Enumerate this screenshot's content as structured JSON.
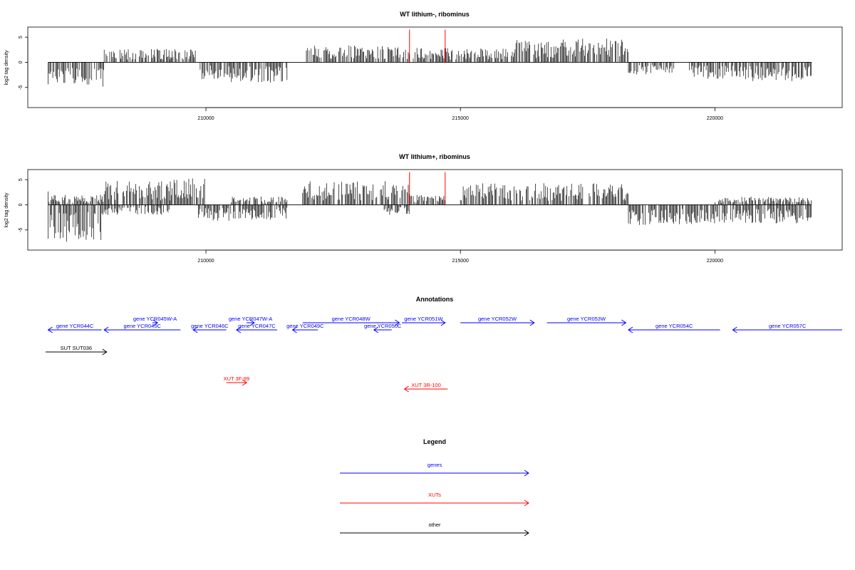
{
  "chart_data": [
    {
      "type": "bar",
      "title": "WT lithium-, ribominus",
      "ylabel": "log2 tag density",
      "xlim": [
        206500,
        222500
      ],
      "ylim": [
        -9,
        7
      ],
      "xticks": [
        210000,
        215000,
        220000
      ],
      "xtick_labels": [
        "210000",
        "215000",
        "220000"
      ],
      "yticks": [
        -5,
        0,
        5
      ],
      "ytick_labels": [
        "-5",
        "0",
        "5"
      ],
      "segments": [
        {
          "start": 206900,
          "end": 208000,
          "sign": -1,
          "level": 3.8
        },
        {
          "start": 208000,
          "end": 209300,
          "sign": 1,
          "level": 2.0
        },
        {
          "start": 209300,
          "end": 209800,
          "sign": 1,
          "level": 2.0
        },
        {
          "start": 209850,
          "end": 210500,
          "sign": -1,
          "level": 2.5
        },
        {
          "start": 210500,
          "end": 211600,
          "sign": -1,
          "level": 3.0
        },
        {
          "start": 211900,
          "end": 214000,
          "sign": 1,
          "level": 2.5
        },
        {
          "start": 214000,
          "end": 215000,
          "sign": 1,
          "level": 2.2
        },
        {
          "start": 215000,
          "end": 216000,
          "sign": 1,
          "level": 2.0
        },
        {
          "start": 216000,
          "end": 218300,
          "sign": 1,
          "level": 3.5
        },
        {
          "start": 218300,
          "end": 219200,
          "sign": -1,
          "level": 1.8
        },
        {
          "start": 219500,
          "end": 220400,
          "sign": -1,
          "level": 2.5
        },
        {
          "start": 220400,
          "end": 221900,
          "sign": -1,
          "level": 2.8
        }
      ],
      "markers": [
        214000,
        214700
      ],
      "marker_color": "#ff0000"
    },
    {
      "type": "bar",
      "title": "WT lithium+, ribominus",
      "ylabel": "log2 tag density",
      "xlim": [
        206500,
        222500
      ],
      "ylim": [
        -9,
        7
      ],
      "xticks": [
        210000,
        215000,
        220000
      ],
      "xtick_labels": [
        "210000",
        "215000",
        "220000"
      ],
      "yticks": [
        -5,
        0,
        5
      ],
      "ytick_labels": [
        "-5",
        "0",
        "5"
      ],
      "segments": [
        {
          "start": 206900,
          "end": 207000,
          "sign": 1,
          "level": 2.0
        },
        {
          "start": 206900,
          "end": 208000,
          "sign": -1,
          "level": 5.5
        },
        {
          "start": 207000,
          "end": 208000,
          "sign": 1,
          "level": 1.5
        },
        {
          "start": 208000,
          "end": 209300,
          "sign": 1,
          "level": 3.5
        },
        {
          "start": 208000,
          "end": 209300,
          "sign": -1,
          "level": 1.5
        },
        {
          "start": 209300,
          "end": 210000,
          "sign": 1,
          "level": 4.0
        },
        {
          "start": 209850,
          "end": 210500,
          "sign": -1,
          "level": 2.5
        },
        {
          "start": 210500,
          "end": 211600,
          "sign": -1,
          "level": 2.2
        },
        {
          "start": 210500,
          "end": 211600,
          "sign": 1,
          "level": 1.2
        },
        {
          "start": 211900,
          "end": 214000,
          "sign": 1,
          "level": 3.5
        },
        {
          "start": 213500,
          "end": 214000,
          "sign": -1,
          "level": 1.5
        },
        {
          "start": 214000,
          "end": 214700,
          "sign": 1,
          "level": 1.5
        },
        {
          "start": 215000,
          "end": 218300,
          "sign": 1,
          "level": 3.2
        },
        {
          "start": 218300,
          "end": 220000,
          "sign": -1,
          "level": 3.0
        },
        {
          "start": 220000,
          "end": 221900,
          "sign": -1,
          "level": 2.8
        },
        {
          "start": 220000,
          "end": 221900,
          "sign": 1,
          "level": 1.2
        }
      ],
      "markers": [
        214000,
        214700
      ],
      "marker_color": "#ff0000"
    }
  ],
  "annotations": {
    "title": "Annotations",
    "xlim": [
      206500,
      222500
    ],
    "features": [
      {
        "label": "gene YCR044C",
        "start": 206900,
        "end": 207950,
        "dir": "left",
        "color": "#0000ff",
        "row": 0
      },
      {
        "label": "gene YCR045W-A",
        "start": 208950,
        "end": 209050,
        "dir": "right",
        "color": "#0000ff",
        "row": -1
      },
      {
        "label": "gene YCR045C",
        "start": 208000,
        "end": 209500,
        "dir": "left",
        "color": "#0000ff",
        "row": 0
      },
      {
        "label": "gene YCR046C",
        "start": 209750,
        "end": 210400,
        "dir": "left",
        "color": "#0000ff",
        "row": 0
      },
      {
        "label": "gene YCR047W-A",
        "start": 210800,
        "end": 210950,
        "dir": "right",
        "color": "#0000ff",
        "row": -1
      },
      {
        "label": "gene YCR047C",
        "start": 210600,
        "end": 211400,
        "dir": "left",
        "color": "#0000ff",
        "row": 0
      },
      {
        "label": "gene YCR048W",
        "start": 211900,
        "end": 213800,
        "dir": "right",
        "color": "#0000ff",
        "row": -1
      },
      {
        "label": "gene YCR049C",
        "start": 211700,
        "end": 212200,
        "dir": "left",
        "color": "#0000ff",
        "row": 0
      },
      {
        "label": "gene YCR050C",
        "start": 213300,
        "end": 213650,
        "dir": "left",
        "color": "#0000ff",
        "row": 0
      },
      {
        "label": "gene YCR051W",
        "start": 213850,
        "end": 214700,
        "dir": "right",
        "color": "#0000ff",
        "row": -1
      },
      {
        "label": "gene YCR052W",
        "start": 215000,
        "end": 216450,
        "dir": "right",
        "color": "#0000ff",
        "row": -1
      },
      {
        "label": "gene YCR053W",
        "start": 216700,
        "end": 218250,
        "dir": "right",
        "color": "#0000ff",
        "row": -1
      },
      {
        "label": "gene YCR054C",
        "start": 218300,
        "end": 220100,
        "dir": "left",
        "color": "#0000ff",
        "row": 0
      },
      {
        "label": "gene YCR057C",
        "start": 220350,
        "end": 222500,
        "dir": "left",
        "color": "#0000ff",
        "row": 0
      },
      {
        "label": "SUT SUT036",
        "start": 206850,
        "end": 208050,
        "dir": "right",
        "color": "#000000",
        "row": 2
      },
      {
        "label": "XUT 3F-99",
        "start": 210400,
        "end": 210800,
        "dir": "right",
        "color": "#ff0000",
        "row": 5
      },
      {
        "label": "XUT 3R-100",
        "start": 213900,
        "end": 214750,
        "dir": "left",
        "color": "#ff0000",
        "row": 6
      }
    ]
  },
  "legend": {
    "title": "Legend",
    "items": [
      {
        "label": "genes",
        "color": "#0000ff"
      },
      {
        "label": "XUTs",
        "color": "#ff0000"
      },
      {
        "label": "other",
        "color": "#000000"
      }
    ]
  }
}
